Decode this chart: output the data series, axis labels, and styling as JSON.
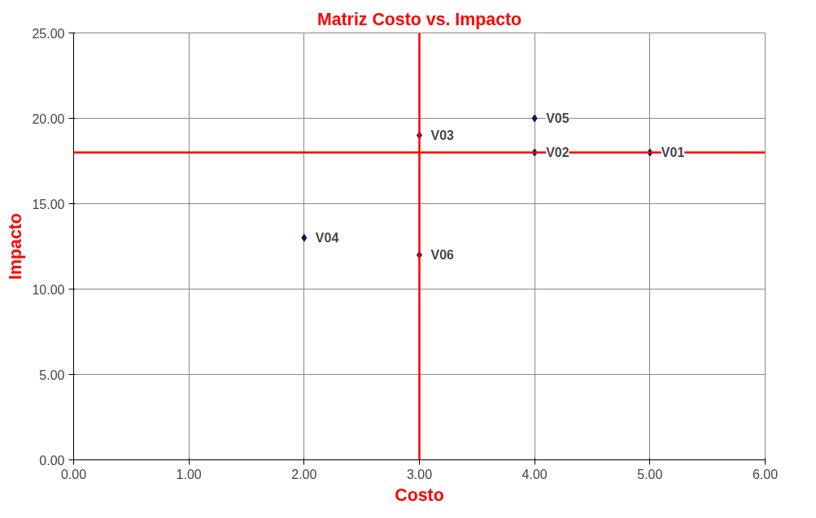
{
  "chart_data": {
    "type": "scatter",
    "title": "Matriz Costo vs. Impacto",
    "xlabel": "Costo",
    "ylabel": "Impacto",
    "x": [
      5,
      4,
      3,
      2,
      4,
      3
    ],
    "values": [
      18,
      18,
      19,
      13,
      20,
      12
    ],
    "value_labels": [
      "V01",
      "V02",
      "V03",
      "V04",
      "V05",
      "V06"
    ],
    "color": "#14145a",
    "marker": "diamond",
    "grid": true,
    "xlim": [
      0,
      6
    ],
    "ylim": [
      0,
      25
    ],
    "xticks": [
      {
        "value": 0,
        "label": "0.00"
      },
      {
        "value": 1,
        "label": "1.00"
      },
      {
        "value": 2,
        "label": "2.00"
      },
      {
        "value": 3,
        "label": "3.00"
      },
      {
        "value": 4,
        "label": "4.00"
      },
      {
        "value": 5,
        "label": "5.00"
      },
      {
        "value": 6,
        "label": "6.00"
      }
    ],
    "yticks": [
      {
        "value": 0,
        "label": "0.00"
      },
      {
        "value": 5,
        "label": "5.00"
      },
      {
        "value": 10,
        "label": "10.00"
      },
      {
        "value": 15,
        "label": "15.00"
      },
      {
        "value": 20,
        "label": "20.00"
      },
      {
        "value": 25,
        "label": "25.00"
      }
    ],
    "ref_lines": [
      {
        "axis": "x",
        "value": 3,
        "color": "#ff0000"
      },
      {
        "axis": "y",
        "value": 18,
        "color": "#ff0000"
      }
    ]
  }
}
